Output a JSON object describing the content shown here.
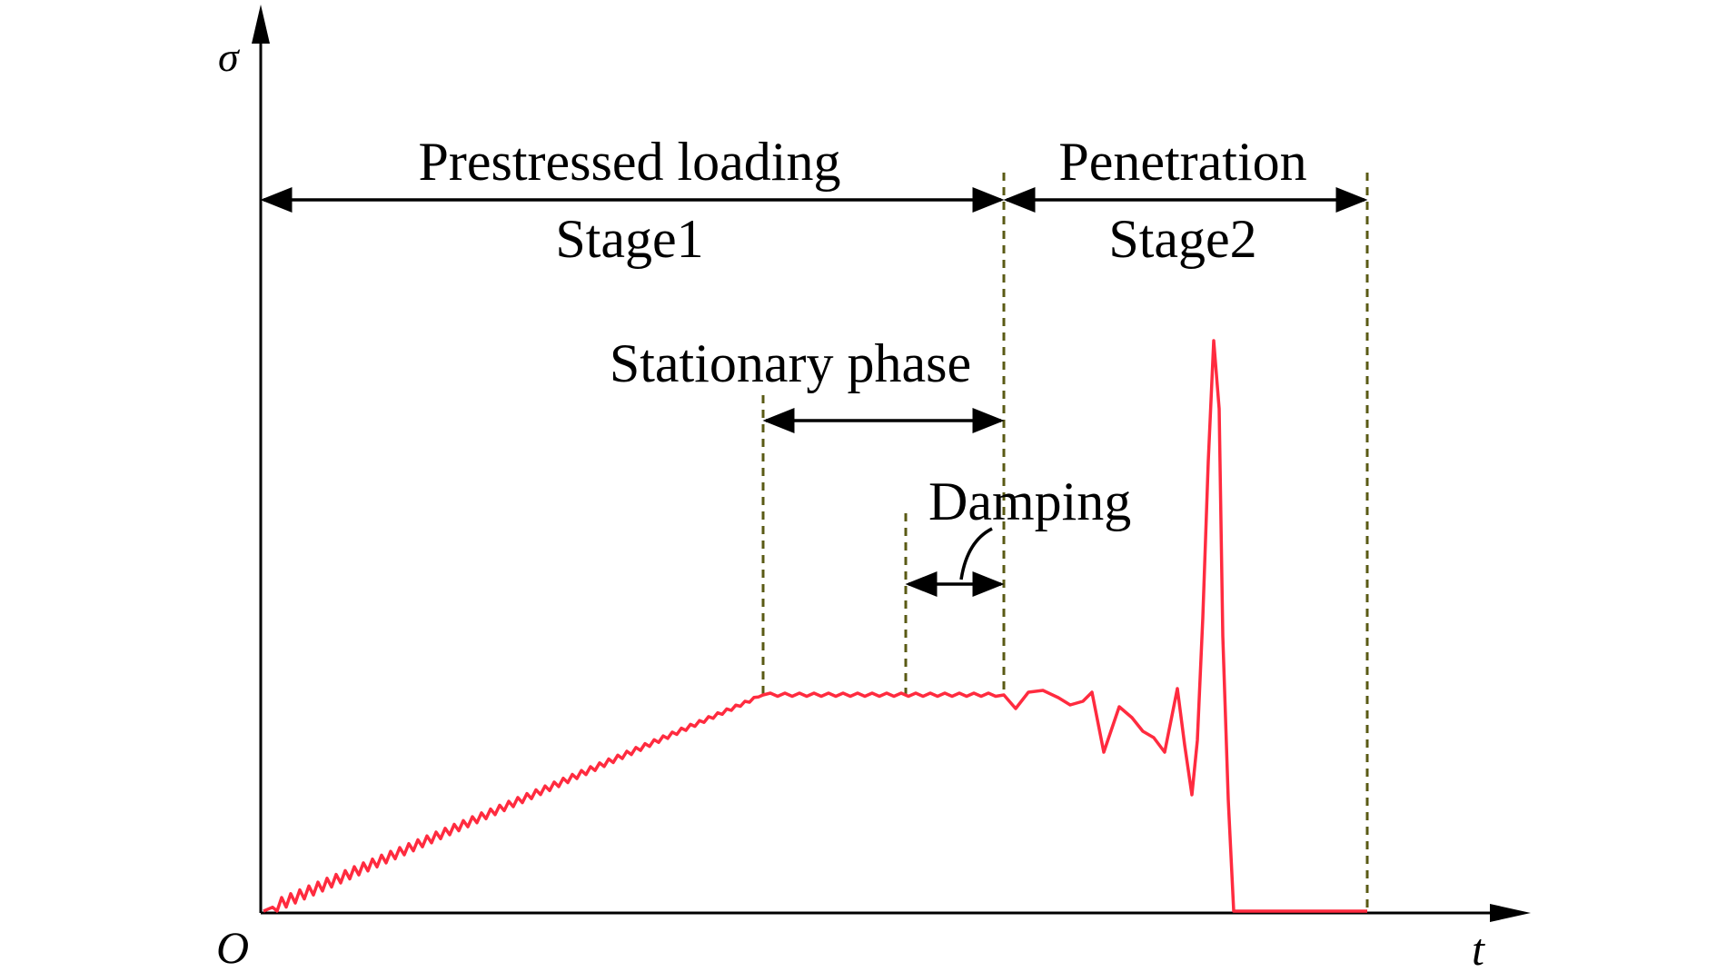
{
  "axes": {
    "y_label": "σ",
    "x_label": "t",
    "origin_label": "O"
  },
  "annotations": {
    "stage1_name": "Prestressed loading",
    "stage1_label": "Stage1",
    "stage2_name": "Penetration",
    "stage2_label": "Stage2",
    "stationary": "Stationary phase",
    "damping": "Damping"
  },
  "colors": {
    "curve": "#ff2b3f",
    "guides": "#5a5a14",
    "axes": "#000000"
  }
}
